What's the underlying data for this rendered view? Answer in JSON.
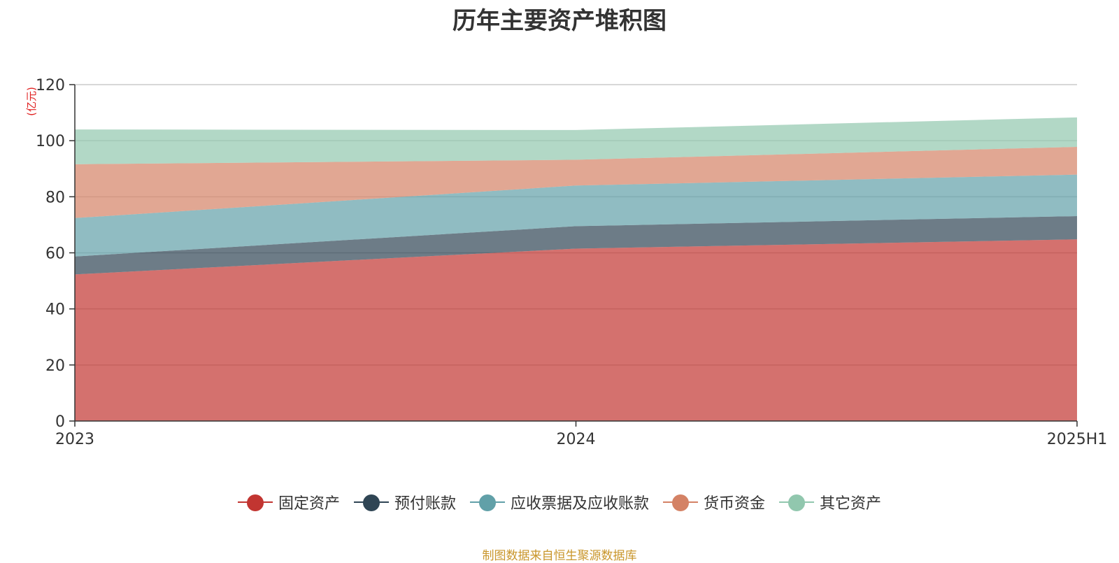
{
  "chart_data": {
    "type": "area",
    "stacked": true,
    "title": "历年主要资产堆积图",
    "unit": "(亿元)",
    "categories": [
      "2023",
      "2024",
      "2025H1"
    ],
    "ylim": [
      0,
      120
    ],
    "yticks": [
      0,
      20,
      40,
      60,
      80,
      100,
      120
    ],
    "series": [
      {
        "name": "固定资产",
        "color": "#c23531",
        "values": [
          52.3,
          61.5,
          64.8
        ]
      },
      {
        "name": "预付账款",
        "color": "#2f4554",
        "values": [
          6.4,
          8.0,
          8.3
        ]
      },
      {
        "name": "应收票据及应收账款",
        "color": "#61a0a8",
        "values": [
          13.7,
          14.5,
          14.8
        ]
      },
      {
        "name": "货币资金",
        "color": "#d48265",
        "values": [
          19.2,
          9.2,
          9.9
        ]
      },
      {
        "name": "其它资产",
        "color": "#91c7ae",
        "values": [
          12.4,
          10.6,
          10.5
        ]
      }
    ],
    "legend_position": "bottom",
    "grid": true
  },
  "footer": {
    "source": "制图数据来自恒生聚源数据库"
  }
}
